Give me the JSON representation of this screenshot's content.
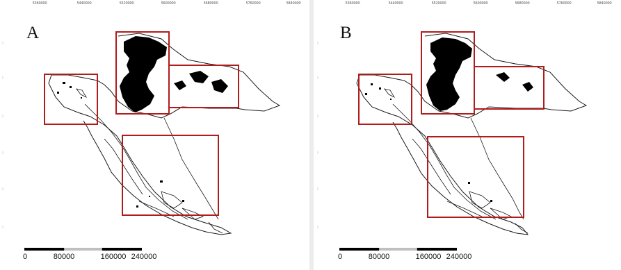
{
  "panels": [
    {
      "label": "A",
      "top_ticks": [
        "5360000",
        "5440000",
        "5520000",
        "5600000",
        "5680000",
        "5760000",
        "5840000"
      ],
      "scale_labels": [
        "0",
        "80000",
        "160000",
        "240000"
      ]
    },
    {
      "label": "B",
      "top_ticks": [
        "5360000",
        "5440000",
        "5520000",
        "5600000",
        "5680000",
        "5760000",
        "5840000"
      ],
      "scale_labels": [
        "0",
        "80000",
        "160000",
        "240000"
      ]
    }
  ],
  "colors": {
    "highlight_box": "#b01c1c",
    "outline": "#1a1a1a",
    "fill": "#000000",
    "background": "#ffffff"
  },
  "icons": [
    "scale-bar"
  ]
}
